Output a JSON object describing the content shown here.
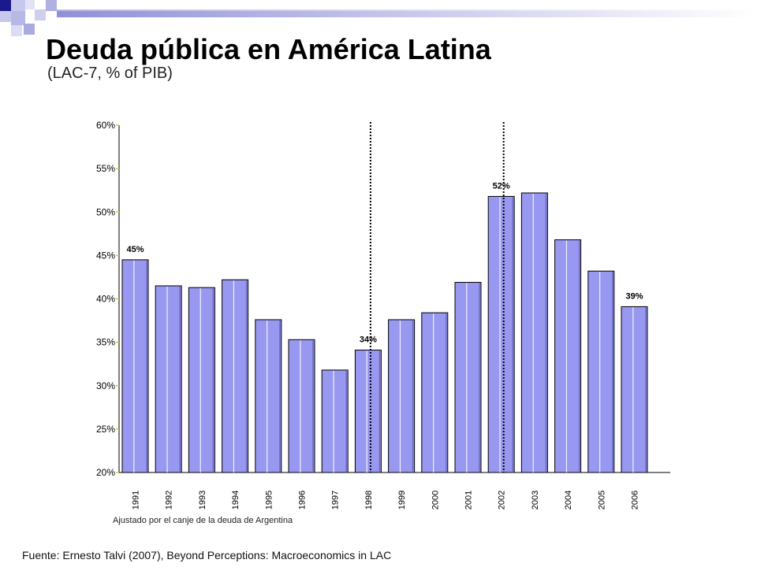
{
  "slide": {
    "title": "Deuda pública en América Latina",
    "subtitle": "(LAC-7, % of PIB)",
    "note": "Ajustado por el canje de la deuda de Argentina",
    "source": "Fuente: Ernesto Talvi (2007), Beyond Perceptions: Macroeconomics in LAC"
  },
  "colors": {
    "bar_fill": "#9898f0",
    "bar_highlight": "#ffffff",
    "bar_stroke": "#000000",
    "deco_dark": "#1a1a8c",
    "deco_light": "#b8b8e6",
    "axis_tick_mark": "#d4c24a"
  },
  "chart_data": {
    "type": "bar",
    "title": "",
    "xlabel": "",
    "ylabel": "",
    "categories": [
      "1991",
      "1992",
      "1993",
      "1994",
      "1995",
      "1996",
      "1997",
      "1998",
      "1999",
      "2000",
      "2001",
      "2002",
      "2003",
      "2004",
      "2005",
      "2006"
    ],
    "values": [
      44.5,
      41.5,
      41.3,
      42.2,
      37.6,
      35.3,
      31.8,
      34.1,
      37.6,
      38.4,
      41.9,
      51.8,
      52.2,
      46.8,
      43.2,
      39.1
    ],
    "ylim": [
      20,
      60
    ],
    "yticks": [
      20,
      25,
      30,
      35,
      40,
      45,
      50,
      55,
      60
    ],
    "ytick_labels": [
      "20%",
      "25%",
      "30%",
      "35%",
      "40%",
      "45%",
      "50%",
      "55%",
      "60%"
    ],
    "data_labels": [
      {
        "category": "1991",
        "text": "45%"
      },
      {
        "category": "1998",
        "text": "34%"
      },
      {
        "category": "2002",
        "text": "52%"
      },
      {
        "category": "2006",
        "text": "39%"
      }
    ],
    "reference_lines": [
      "1998",
      "2002"
    ],
    "grid": false,
    "legend": "none"
  }
}
